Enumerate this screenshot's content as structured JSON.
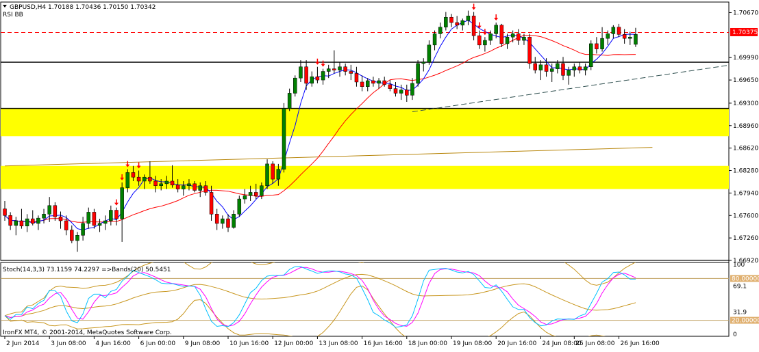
{
  "header": {
    "symbol_line": "GBPUSD,H4  1.70188  1.70436  1.70150  1.70342",
    "indicators_line": "RSI  BB"
  },
  "sub_header": {
    "label": "Stoch(14,3,3) 73.1159 74.2297   =>Bands(20) 50.5451"
  },
  "footer": {
    "copyright": "IronFX MT4, © 2001-2014, MetaQuotes Software Corp."
  },
  "colors": {
    "bull": "#008000",
    "bear": "#ff0000",
    "wick": "#000000",
    "zone": "#ffff00",
    "ma_fast": "#0000ff",
    "ma_slow": "#ff0000",
    "ma_long": "#b8860b",
    "stoch_main": "#00bfff",
    "stoch_signal": "#ff00ff",
    "bands": "#c8961e",
    "resistance": "#ff0000",
    "support": "#000000",
    "trendline": "#2f4f4f",
    "price_tag": "#ff0000",
    "level_tag": "#ff0000"
  },
  "chart_data": [
    {
      "type": "candlestick",
      "title": "GBPUSD,H4",
      "ylim": [
        1.6692,
        1.7083
      ],
      "price_labels": [
        "1.70670",
        "1.69990",
        "1.69650",
        "1.69300",
        "1.68960",
        "1.68620",
        "1.68280",
        "1.67940",
        "1.67600",
        "1.67260",
        "1.66920"
      ],
      "price_ticks": [
        1.7067,
        1.6999,
        1.6965,
        1.693,
        1.6896,
        1.6862,
        1.6828,
        1.6794,
        1.676,
        1.6726,
        1.6692
      ],
      "current_price_label": "1.70375",
      "current_price": 1.70375,
      "time_labels": [
        "2 Jun 2014",
        "3 Jun 08:00",
        "4 Jun 16:00",
        "6 Jun 00:00",
        "9 Jun 08:00",
        "10 Jun 16:00",
        "12 Jun 00:00",
        "13 Jun 08:00",
        "16 Jun 16:00",
        "18 Jun 00:00",
        "19 Jun 08:00",
        "20 Jun 16:00",
        "24 Jun 08:00",
        "25 Jun 08:00",
        "26 Jun 16:00"
      ],
      "time_label_index": [
        0,
        8,
        16,
        24,
        32,
        40,
        48,
        56,
        64,
        72,
        80,
        88,
        96,
        102,
        110
      ],
      "candles": [
        [
          1.677,
          1.6782,
          1.6752,
          1.676
        ],
        [
          1.676,
          1.6765,
          1.6738,
          1.6745
        ],
        [
          1.6745,
          1.6758,
          1.673,
          1.6752
        ],
        [
          1.6752,
          1.677,
          1.674,
          1.6744
        ],
        [
          1.6744,
          1.6762,
          1.6735,
          1.6755
        ],
        [
          1.6755,
          1.6768,
          1.6745,
          1.6748
        ],
        [
          1.6748,
          1.676,
          1.6738,
          1.6756
        ],
        [
          1.6756,
          1.677,
          1.6748,
          1.6762
        ],
        [
          1.6762,
          1.6788,
          1.675,
          1.6775
        ],
        [
          1.6775,
          1.678,
          1.6752,
          1.6758
        ],
        [
          1.6758,
          1.6766,
          1.674,
          1.6752
        ],
        [
          1.6752,
          1.676,
          1.673,
          1.6738
        ],
        [
          1.6738,
          1.6745,
          1.6718,
          1.6722
        ],
        [
          1.6722,
          1.6735,
          1.6705,
          1.673
        ],
        [
          1.673,
          1.6758,
          1.6722,
          1.6748
        ],
        [
          1.6748,
          1.6772,
          1.674,
          1.6765
        ],
        [
          1.6765,
          1.677,
          1.674,
          1.6745
        ],
        [
          1.6745,
          1.6755,
          1.6735,
          1.6748
        ],
        [
          1.6748,
          1.676,
          1.6738,
          1.6752
        ],
        [
          1.6752,
          1.6775,
          1.6745,
          1.6768
        ],
        [
          1.6768,
          1.6772,
          1.6745,
          1.6755
        ],
        [
          1.6755,
          1.681,
          1.672,
          1.6802
        ],
        [
          1.6802,
          1.683,
          1.6795,
          1.6825
        ],
        [
          1.6825,
          1.6835,
          1.6812,
          1.6818
        ],
        [
          1.6818,
          1.6828,
          1.6805,
          1.6812
        ],
        [
          1.6812,
          1.6822,
          1.68,
          1.6818
        ],
        [
          1.6818,
          1.6842,
          1.6808,
          1.6812
        ],
        [
          1.6812,
          1.682,
          1.6795,
          1.6805
        ],
        [
          1.6805,
          1.6815,
          1.6798,
          1.6808
        ],
        [
          1.6808,
          1.682,
          1.68,
          1.6812
        ],
        [
          1.6812,
          1.6836,
          1.6802,
          1.6806
        ],
        [
          1.6806,
          1.6815,
          1.6795,
          1.68
        ],
        [
          1.68,
          1.6812,
          1.679,
          1.6805
        ],
        [
          1.6805,
          1.6815,
          1.6798,
          1.6808
        ],
        [
          1.6808,
          1.6812,
          1.6795,
          1.6798
        ],
        [
          1.6798,
          1.681,
          1.6788,
          1.6805
        ],
        [
          1.6805,
          1.6812,
          1.679,
          1.6795
        ],
        [
          1.6795,
          1.6805,
          1.6752,
          1.6762
        ],
        [
          1.6762,
          1.677,
          1.6738,
          1.6748
        ],
        [
          1.6748,
          1.676,
          1.674,
          1.6755
        ],
        [
          1.6755,
          1.6762,
          1.6735,
          1.6742
        ],
        [
          1.6742,
          1.6768,
          1.674,
          1.6762
        ],
        [
          1.6762,
          1.679,
          1.6758,
          1.6785
        ],
        [
          1.6785,
          1.68,
          1.6778,
          1.679
        ],
        [
          1.679,
          1.6805,
          1.6782,
          1.6795
        ],
        [
          1.6795,
          1.6808,
          1.6785,
          1.679
        ],
        [
          1.679,
          1.681,
          1.6785,
          1.6805
        ],
        [
          1.6805,
          1.6845,
          1.68,
          1.6838
        ],
        [
          1.6838,
          1.6842,
          1.6808,
          1.6815
        ],
        [
          1.6815,
          1.6838,
          1.6805,
          1.683
        ],
        [
          1.683,
          1.693,
          1.6825,
          1.6922
        ],
        [
          1.6922,
          1.6952,
          1.6918,
          1.6945
        ],
        [
          1.6945,
          1.6972,
          1.694,
          1.6968
        ],
        [
          1.6968,
          1.6995,
          1.6962,
          1.6985
        ],
        [
          1.6985,
          1.6995,
          1.695,
          1.696
        ],
        [
          1.696,
          1.6978,
          1.6955,
          1.697
        ],
        [
          1.697,
          1.6985,
          1.696,
          1.6965
        ],
        [
          1.6965,
          1.6982,
          1.6958,
          1.6978
        ],
        [
          1.6978,
          1.6988,
          1.6968,
          1.6982
        ],
        [
          1.6982,
          1.701,
          1.6975,
          1.698
        ],
        [
          1.698,
          1.6992,
          1.697,
          1.6985
        ],
        [
          1.6985,
          1.699,
          1.6972,
          1.6978
        ],
        [
          1.6978,
          1.6988,
          1.6965,
          1.6975
        ],
        [
          1.6975,
          1.6985,
          1.6955,
          1.6962
        ],
        [
          1.6962,
          1.6972,
          1.6948,
          1.6955
        ],
        [
          1.6955,
          1.6968,
          1.6948,
          1.6964
        ],
        [
          1.6964,
          1.697,
          1.6955,
          1.696
        ],
        [
          1.696,
          1.6968,
          1.6952,
          1.6964
        ],
        [
          1.6964,
          1.697,
          1.6955,
          1.6958
        ],
        [
          1.6958,
          1.6965,
          1.6948,
          1.6952
        ],
        [
          1.6952,
          1.6962,
          1.694,
          1.6945
        ],
        [
          1.6945,
          1.6958,
          1.6935,
          1.695
        ],
        [
          1.695,
          1.6958,
          1.6932,
          1.6942
        ],
        [
          1.6942,
          1.6968,
          1.6935,
          1.696
        ],
        [
          1.696,
          1.6995,
          1.6955,
          1.699
        ],
        [
          1.699,
          1.6998,
          1.6978,
          1.6992
        ],
        [
          1.6992,
          1.7025,
          1.6988,
          1.7018
        ],
        [
          1.7018,
          1.704,
          1.701,
          1.7035
        ],
        [
          1.7035,
          1.7052,
          1.7028,
          1.7045
        ],
        [
          1.7045,
          1.7068,
          1.704,
          1.706
        ],
        [
          1.706,
          1.7065,
          1.7045,
          1.7052
        ],
        [
          1.7052,
          1.7062,
          1.7042,
          1.7048
        ],
        [
          1.7048,
          1.7058,
          1.704,
          1.7055
        ],
        [
          1.7055,
          1.707,
          1.7048,
          1.7062
        ],
        [
          1.7062,
          1.7068,
          1.7025,
          1.7032
        ],
        [
          1.7032,
          1.704,
          1.7012,
          1.7018
        ],
        [
          1.7018,
          1.703,
          1.7008,
          1.7025
        ],
        [
          1.7025,
          1.704,
          1.7018,
          1.7035
        ],
        [
          1.7035,
          1.7052,
          1.7028,
          1.7048
        ],
        [
          1.7048,
          1.705,
          1.7015,
          1.702
        ],
        [
          1.702,
          1.7035,
          1.7012,
          1.703
        ],
        [
          1.703,
          1.704,
          1.7022,
          1.7035
        ],
        [
          1.7035,
          1.7042,
          1.7018,
          1.7025
        ],
        [
          1.7025,
          1.7035,
          1.7018,
          1.703
        ],
        [
          1.703,
          1.7035,
          1.6982,
          1.699
        ],
        [
          1.699,
          1.7,
          1.6975,
          1.698
        ],
        [
          1.698,
          1.6995,
          1.6965,
          1.6988
        ],
        [
          1.6988,
          1.6998,
          1.697,
          1.6978
        ],
        [
          1.6978,
          1.699,
          1.6962,
          1.6982
        ],
        [
          1.6982,
          1.6995,
          1.6975,
          1.699
        ],
        [
          1.699,
          1.7,
          1.6965,
          1.6972
        ],
        [
          1.6972,
          1.6985,
          1.6958,
          1.698
        ],
        [
          1.698,
          1.699,
          1.697,
          1.6985
        ],
        [
          1.6985,
          1.6992,
          1.6975,
          1.698
        ],
        [
          1.698,
          1.699,
          1.6972,
          1.6985
        ],
        [
          1.6985,
          1.7025,
          1.698,
          1.702
        ],
        [
          1.702,
          1.703,
          1.7005,
          1.7012
        ],
        [
          1.7012,
          1.7045,
          1.7008,
          1.7028
        ],
        [
          1.7028,
          1.704,
          1.7018,
          1.7035
        ],
        [
          1.7035,
          1.7048,
          1.7028,
          1.7045
        ],
        [
          1.7045,
          1.705,
          1.703,
          1.7034
        ],
        [
          1.7034,
          1.7042,
          1.702,
          1.7028
        ],
        [
          1.7028,
          1.7038,
          1.7018,
          1.703
        ],
        [
          1.7019,
          1.7044,
          1.7015,
          1.7034
        ]
      ],
      "fractal_arrows": [
        20,
        21,
        22,
        24,
        56,
        57,
        84,
        85,
        86,
        88
      ],
      "horizontal_lines": [
        {
          "price": 1.7037,
          "style": "dashed",
          "role": "resistance"
        },
        {
          "price": 1.6992,
          "style": "solid",
          "role": "support"
        },
        {
          "price": 1.6922,
          "style": "solid",
          "role": "support"
        },
        {
          "price": 1.6692,
          "style": "solid",
          "role": "support"
        }
      ],
      "zones": [
        {
          "from": 1.688,
          "to": 1.6922
        },
        {
          "from": 1.68,
          "to": 1.6835
        }
      ],
      "trendline": {
        "from": [
          73,
          1.6917
        ],
        "to": [
          131,
          1.6989
        ]
      },
      "ma_long": {
        "from": [
          0,
          1.6835
        ],
        "to": [
          116,
          1.6863
        ]
      },
      "stoch": {
        "ylim": [
          0,
          100
        ],
        "levels": [
          80,
          20
        ],
        "level_labels": [
          "80.00000",
          "20.00000"
        ],
        "tick_labels": [
          "100",
          "69.1",
          "31.9",
          "0"
        ],
        "tick_values": [
          100,
          69.1,
          31.9,
          0
        ],
        "main_last": 73.1159,
        "signal_last": 74.2297,
        "bands_last": 50.5451
      }
    }
  ]
}
